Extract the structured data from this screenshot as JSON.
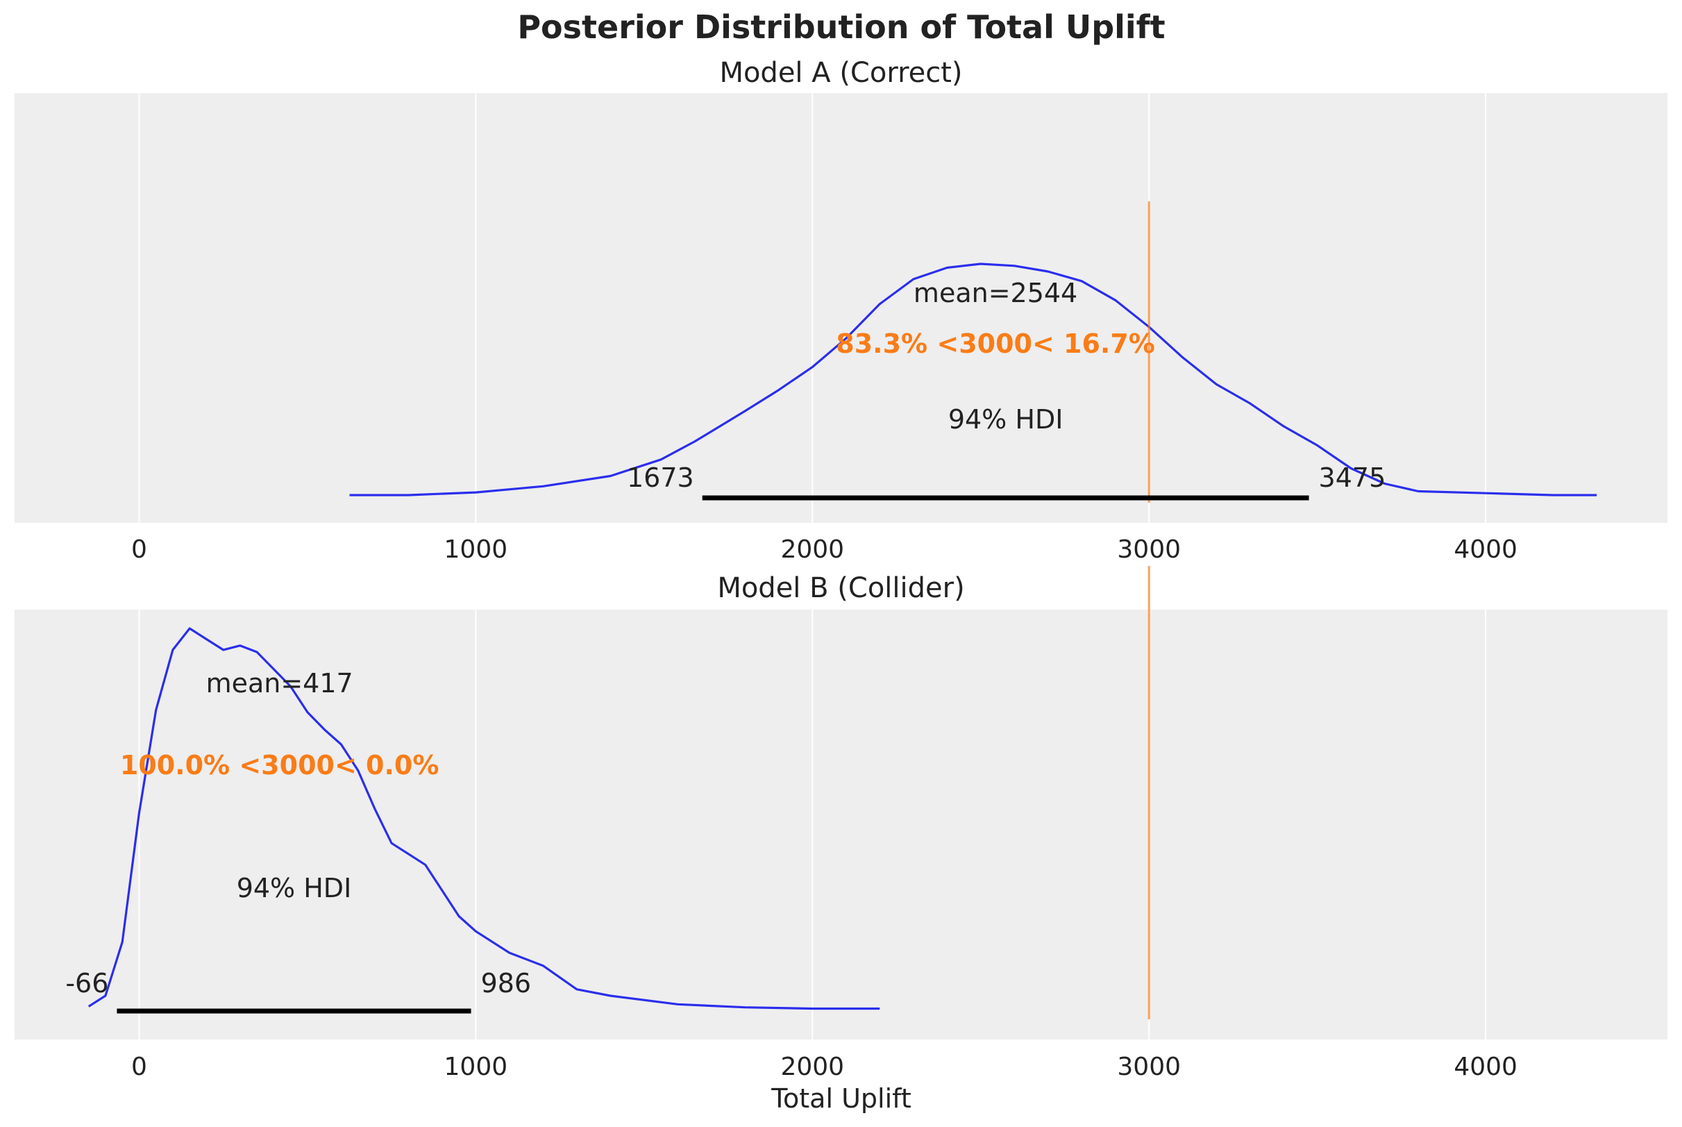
{
  "figure": {
    "title": "Posterior Distribution of Total Uplift",
    "xlabel": "Total Uplift"
  },
  "chart_data": [
    {
      "type": "area",
      "title": "Model A (Correct)",
      "xlabel": "",
      "ylabel": "",
      "xlim": [
        -370,
        4540
      ],
      "xticks": [
        0,
        1000,
        2000,
        3000,
        4000
      ],
      "tick_labels": [
        "0",
        "1000",
        "2000",
        "3000",
        "4000"
      ],
      "grid": true,
      "curve_color": "#2a2eec",
      "ref_color": "#fa7c17",
      "density": [
        [
          625,
          0.02
        ],
        [
          800,
          0.02
        ],
        [
          1000,
          0.027
        ],
        [
          1200,
          0.043
        ],
        [
          1400,
          0.07
        ],
        [
          1550,
          0.113
        ],
        [
          1650,
          0.16
        ],
        [
          1800,
          0.24
        ],
        [
          1900,
          0.295
        ],
        [
          2000,
          0.355
        ],
        [
          2100,
          0.43
        ],
        [
          2200,
          0.52
        ],
        [
          2300,
          0.585
        ],
        [
          2400,
          0.615
        ],
        [
          2500,
          0.625
        ],
        [
          2600,
          0.62
        ],
        [
          2700,
          0.605
        ],
        [
          2800,
          0.58
        ],
        [
          2900,
          0.53
        ],
        [
          3000,
          0.46
        ],
        [
          3100,
          0.38
        ],
        [
          3200,
          0.31
        ],
        [
          3300,
          0.26
        ],
        [
          3400,
          0.2
        ],
        [
          3500,
          0.15
        ],
        [
          3600,
          0.09
        ],
        [
          3700,
          0.05
        ],
        [
          3800,
          0.03
        ],
        [
          4000,
          0.025
        ],
        [
          4200,
          0.02
        ],
        [
          4330,
          0.02
        ]
      ],
      "ymax": 0.78,
      "mean_label": "mean=2544",
      "mean": 2544,
      "hdi_label": "94% HDI",
      "hdi_low": 1673,
      "hdi_high": 3475,
      "hdi_low_label": "1673",
      "hdi_high_label": "3475",
      "ref_value": 3000,
      "ref_label": "83.3% <3000< 16.7%"
    },
    {
      "type": "area",
      "title": "Model B (Collider)",
      "xlabel": "Total Uplift",
      "ylabel": "",
      "xlim": [
        -370,
        4540
      ],
      "xticks": [
        0,
        1000,
        2000,
        3000,
        4000
      ],
      "tick_labels": [
        "0",
        "1000",
        "2000",
        "3000",
        "4000"
      ],
      "grid": true,
      "curve_color": "#2a2eec",
      "ref_color": "#fa7c17",
      "density": [
        [
          -150,
          0.03
        ],
        [
          -100,
          0.055
        ],
        [
          -50,
          0.18
        ],
        [
          0,
          0.48
        ],
        [
          50,
          0.72
        ],
        [
          100,
          0.86
        ],
        [
          150,
          0.91
        ],
        [
          200,
          0.885
        ],
        [
          250,
          0.86
        ],
        [
          300,
          0.87
        ],
        [
          350,
          0.855
        ],
        [
          400,
          0.815
        ],
        [
          450,
          0.775
        ],
        [
          500,
          0.715
        ],
        [
          550,
          0.675
        ],
        [
          600,
          0.64
        ],
        [
          650,
          0.58
        ],
        [
          700,
          0.49
        ],
        [
          750,
          0.41
        ],
        [
          800,
          0.385
        ],
        [
          850,
          0.36
        ],
        [
          900,
          0.3
        ],
        [
          950,
          0.24
        ],
        [
          1000,
          0.205
        ],
        [
          1100,
          0.155
        ],
        [
          1200,
          0.125
        ],
        [
          1300,
          0.07
        ],
        [
          1400,
          0.055
        ],
        [
          1600,
          0.035
        ],
        [
          1800,
          0.028
        ],
        [
          2000,
          0.025
        ],
        [
          2200,
          0.025
        ]
      ],
      "ymax": 1.0,
      "mean_label": "mean=417",
      "mean": 417,
      "hdi_label": "94% HDI",
      "hdi_low": -66,
      "hdi_high": 986,
      "hdi_low_label": "-66",
      "hdi_high_label": "986",
      "ref_value": 3000,
      "ref_label": "100.0% <3000< 0.0%"
    }
  ]
}
